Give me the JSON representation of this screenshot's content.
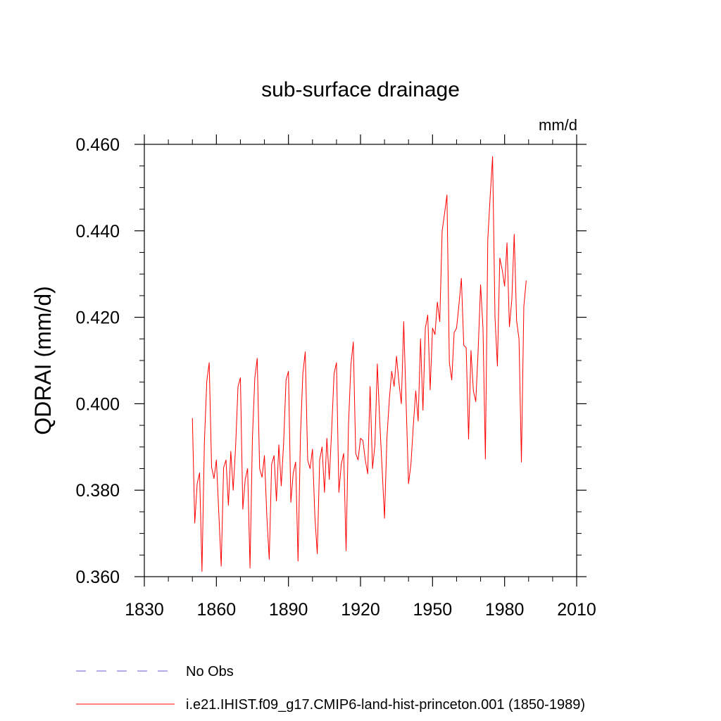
{
  "chart_data": {
    "type": "line",
    "title": "sub-surface drainage",
    "units_label": "mm/d",
    "xlabel": "",
    "ylabel": "QDRAI  (mm/d)",
    "xlim": [
      1830,
      2010
    ],
    "ylim": [
      0.36,
      0.46
    ],
    "x_ticks": [
      1830,
      1860,
      1890,
      1920,
      1950,
      1980,
      2010
    ],
    "x_tick_labels": [
      "1830",
      "1860",
      "1890",
      "1920",
      "1950",
      "1980",
      "2010"
    ],
    "y_ticks": [
      0.36,
      0.38,
      0.4,
      0.42,
      0.44,
      0.46
    ],
    "y_tick_labels": [
      "0.360",
      "0.380",
      "0.400",
      "0.420",
      "0.440",
      "0.460"
    ],
    "grid": false,
    "legend_position": "bottom-left, below plot",
    "series": [
      {
        "name": "No Obs",
        "color": "#6a5acd",
        "style": "dashed",
        "x": [],
        "values": []
      },
      {
        "name": "i.e21.IHIST.f09_g17.CMIP6-land-hist-princeton.001 (1850-1989)",
        "color": "#ff0000",
        "style": "solid",
        "x": [
          1850,
          1851,
          1852,
          1853,
          1854,
          1855,
          1856,
          1857,
          1858,
          1859,
          1860,
          1861,
          1862,
          1863,
          1864,
          1865,
          1866,
          1867,
          1868,
          1869,
          1870,
          1871,
          1872,
          1873,
          1874,
          1875,
          1876,
          1877,
          1878,
          1879,
          1880,
          1881,
          1882,
          1883,
          1884,
          1885,
          1886,
          1887,
          1888,
          1889,
          1890,
          1891,
          1892,
          1893,
          1894,
          1895,
          1896,
          1897,
          1898,
          1899,
          1900,
          1901,
          1902,
          1903,
          1904,
          1905,
          1906,
          1907,
          1908,
          1909,
          1910,
          1911,
          1912,
          1913,
          1914,
          1915,
          1916,
          1917,
          1918,
          1919,
          1920,
          1921,
          1922,
          1923,
          1924,
          1925,
          1926,
          1927,
          1928,
          1929,
          1930,
          1931,
          1932,
          1933,
          1934,
          1935,
          1936,
          1937,
          1938,
          1939,
          1940,
          1941,
          1942,
          1943,
          1944,
          1945,
          1946,
          1947,
          1948,
          1949,
          1950,
          1951,
          1952,
          1953,
          1954,
          1955,
          1956,
          1957,
          1958,
          1959,
          1960,
          1961,
          1962,
          1963,
          1964,
          1965,
          1966,
          1967,
          1968,
          1969,
          1970,
          1971,
          1972,
          1973,
          1974,
          1975,
          1976,
          1977,
          1978,
          1979,
          1980,
          1981,
          1982,
          1983,
          1984,
          1985,
          1986,
          1987,
          1988,
          1989
        ],
        "values": [
          0.3967,
          0.3724,
          0.3815,
          0.384,
          0.3612,
          0.391,
          0.4052,
          0.4095,
          0.3853,
          0.3827,
          0.387,
          0.3748,
          0.3624,
          0.3852,
          0.387,
          0.3765,
          0.389,
          0.38,
          0.39,
          0.404,
          0.406,
          0.3756,
          0.3825,
          0.385,
          0.362,
          0.392,
          0.406,
          0.4105,
          0.385,
          0.383,
          0.388,
          0.374,
          0.364,
          0.386,
          0.388,
          0.3775,
          0.3905,
          0.381,
          0.391,
          0.4055,
          0.4075,
          0.3772,
          0.384,
          0.3865,
          0.3636,
          0.3925,
          0.407,
          0.412,
          0.387,
          0.385,
          0.3895,
          0.374,
          0.3653,
          0.387,
          0.39,
          0.3795,
          0.392,
          0.3825,
          0.394,
          0.407,
          0.4095,
          0.3795,
          0.386,
          0.3885,
          0.366,
          0.395,
          0.409,
          0.4143,
          0.3885,
          0.387,
          0.392,
          0.3915,
          0.387,
          0.3838,
          0.404,
          0.385,
          0.3905,
          0.4092,
          0.396,
          0.385,
          0.3735,
          0.392,
          0.401,
          0.4075,
          0.404,
          0.411,
          0.405,
          0.4,
          0.419,
          0.4,
          0.3815,
          0.386,
          0.395,
          0.403,
          0.396,
          0.415,
          0.3985,
          0.4175,
          0.4205,
          0.4032,
          0.4175,
          0.416,
          0.4235,
          0.419,
          0.44,
          0.444,
          0.4483,
          0.4095,
          0.4055,
          0.4165,
          0.4175,
          0.423,
          0.429,
          0.4135,
          0.413,
          0.3918,
          0.4123,
          0.403,
          0.4005,
          0.4125,
          0.4275,
          0.4175,
          0.3872,
          0.438,
          0.448,
          0.4572,
          0.42,
          0.4087,
          0.4337,
          0.431,
          0.4272,
          0.4372,
          0.4178,
          0.424,
          0.4392,
          0.4192,
          0.415,
          0.3865,
          0.4225,
          0.4285
        ]
      }
    ]
  }
}
